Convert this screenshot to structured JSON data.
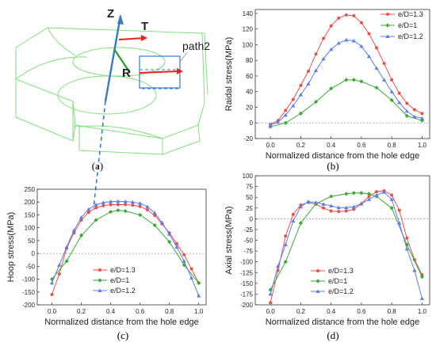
{
  "sketch": {
    "label_z": "Z",
    "label_t": "T",
    "label_r": "R",
    "label_path": "path2",
    "caption": "(a)",
    "colors": {
      "outline": "#7ee07e",
      "axis": "#3a78c8",
      "arrow": "#e8231e",
      "r_axis": "#2aa02a"
    }
  },
  "chart_data": [
    {
      "type": "line",
      "caption": "(b)",
      "xlabel": "Normalized distance from the hole edge",
      "ylabel": "Raidal stress(MPa)",
      "xlim": [
        -0.1,
        1.05
      ],
      "ylim": [
        -20,
        145
      ],
      "xticks": [
        "0.0",
        "0.2",
        "0.4",
        "0.6",
        "0.8",
        "1.0"
      ],
      "yticks": [
        "-20",
        "0",
        "20",
        "40",
        "60",
        "80",
        "100",
        "120",
        "140"
      ],
      "legend_position": "top-right",
      "series": [
        {
          "name": "e/D=1.3",
          "color": "#e8504a",
          "marker": "circle",
          "x": [
            0,
            0.05,
            0.1,
            0.15,
            0.2,
            0.25,
            0.3,
            0.35,
            0.4,
            0.45,
            0.5,
            0.55,
            0.6,
            0.65,
            0.7,
            0.75,
            0.8,
            0.85,
            0.9,
            0.95,
            1.0
          ],
          "y": [
            -2,
            3,
            16,
            30,
            48,
            66,
            88,
            108,
            124,
            134,
            138,
            137,
            128,
            114,
            96,
            76,
            55,
            38,
            25,
            17,
            12
          ]
        },
        {
          "name": "e/D=1",
          "color": "#3aaa35",
          "marker": "diamond",
          "x": [
            0,
            0.1,
            0.2,
            0.3,
            0.4,
            0.5,
            0.55,
            0.6,
            0.7,
            0.8,
            0.9,
            1.0
          ],
          "y": [
            -5,
            0,
            12,
            27,
            44,
            55,
            55,
            53,
            45,
            29,
            9,
            3
          ]
        },
        {
          "name": "e/D=1.2",
          "color": "#5b7ee8",
          "marker": "triangle",
          "x": [
            0,
            0.05,
            0.1,
            0.15,
            0.2,
            0.25,
            0.3,
            0.35,
            0.4,
            0.45,
            0.5,
            0.55,
            0.6,
            0.65,
            0.7,
            0.75,
            0.8,
            0.85,
            0.9,
            0.95,
            1.0
          ],
          "y": [
            -3,
            1,
            10,
            22,
            36,
            50,
            67,
            82,
            94,
            102,
            106,
            105,
            98,
            85,
            70,
            55,
            40,
            26,
            15,
            8,
            6
          ]
        }
      ]
    },
    {
      "type": "line",
      "caption": "(c)",
      "xlabel": "Normalized distance from the hole edge",
      "ylabel": "Hoop stress(MPa)",
      "xlim": [
        -0.1,
        1.05
      ],
      "ylim": [
        -200,
        250
      ],
      "xticks": [
        "0.0",
        "0.2",
        "0.4",
        "0.6",
        "0.8",
        "1.0"
      ],
      "yticks": [
        "-200",
        "-150",
        "-100",
        "-50",
        "0",
        "50",
        "100",
        "150",
        "200",
        "250"
      ],
      "legend_position": "bottom-center",
      "series": [
        {
          "name": "e/D=1.3",
          "color": "#e8504a",
          "marker": "circle",
          "x": [
            0,
            0.05,
            0.1,
            0.15,
            0.2,
            0.25,
            0.3,
            0.35,
            0.4,
            0.45,
            0.5,
            0.55,
            0.6,
            0.65,
            0.7,
            0.75,
            0.8,
            0.85,
            0.9,
            0.95,
            1.0
          ],
          "y": [
            -160,
            -80,
            20,
            80,
            130,
            160,
            178,
            186,
            190,
            190,
            190,
            188,
            183,
            170,
            148,
            115,
            80,
            38,
            -5,
            -60,
            -115
          ]
        },
        {
          "name": "e/D=1",
          "color": "#3aaa35",
          "marker": "diamond",
          "x": [
            0,
            0.1,
            0.2,
            0.3,
            0.4,
            0.45,
            0.5,
            0.6,
            0.7,
            0.8,
            0.9,
            1.0
          ],
          "y": [
            -100,
            -30,
            70,
            130,
            162,
            168,
            165,
            150,
            110,
            45,
            -45,
            -115
          ]
        },
        {
          "name": "e/D=1.2",
          "color": "#5b7ee8",
          "marker": "triangle",
          "x": [
            0,
            0.05,
            0.1,
            0.15,
            0.2,
            0.25,
            0.3,
            0.35,
            0.4,
            0.45,
            0.5,
            0.55,
            0.6,
            0.65,
            0.7,
            0.75,
            0.8,
            0.85,
            0.9,
            0.95,
            1.0
          ],
          "y": [
            -115,
            -45,
            25,
            90,
            140,
            172,
            190,
            198,
            202,
            203,
            202,
            200,
            195,
            182,
            158,
            120,
            75,
            25,
            -30,
            -95,
            -165
          ]
        }
      ]
    },
    {
      "type": "line",
      "caption": "(d)",
      "xlabel": "Normalized distance from the hole edge",
      "ylabel": "Axial stress(MPa)",
      "xlim": [
        -0.1,
        1.05
      ],
      "ylim": [
        -200,
        100
      ],
      "xticks": [
        "0.0",
        "0.2",
        "0.4",
        "0.6",
        "0.8",
        "1.0"
      ],
      "yticks": [
        "-200",
        "-175",
        "-150",
        "-125",
        "-100",
        "-75",
        "-50",
        "-25",
        "0",
        "25",
        "50",
        "75",
        "100"
      ],
      "legend_position": "bottom-center",
      "series": [
        {
          "name": "e/D=1.3",
          "color": "#e8504a",
          "marker": "circle",
          "x": [
            0,
            0.05,
            0.1,
            0.15,
            0.2,
            0.25,
            0.3,
            0.35,
            0.4,
            0.45,
            0.5,
            0.55,
            0.6,
            0.65,
            0.7,
            0.75,
            0.8,
            0.85,
            0.9,
            0.95,
            1.0
          ],
          "y": [
            -195,
            -120,
            -40,
            10,
            32,
            38,
            34,
            25,
            18,
            17,
            18,
            22,
            35,
            52,
            63,
            65,
            55,
            20,
            -45,
            -95,
            -130
          ]
        },
        {
          "name": "e/D=1",
          "color": "#3aaa35",
          "marker": "diamond",
          "x": [
            0,
            0.1,
            0.2,
            0.3,
            0.4,
            0.5,
            0.55,
            0.6,
            0.65,
            0.7,
            0.8,
            0.9,
            1.0
          ],
          "y": [
            -165,
            -100,
            -10,
            35,
            52,
            58,
            60,
            60,
            58,
            52,
            25,
            -60,
            -135
          ]
        },
        {
          "name": "e/D=1.2",
          "color": "#5b7ee8",
          "marker": "triangle",
          "x": [
            0,
            0.05,
            0.1,
            0.15,
            0.2,
            0.25,
            0.3,
            0.35,
            0.4,
            0.45,
            0.5,
            0.55,
            0.6,
            0.65,
            0.7,
            0.75,
            0.8,
            0.85,
            0.9,
            0.95,
            1.0
          ],
          "y": [
            -175,
            -110,
            -60,
            -5,
            28,
            40,
            38,
            34,
            30,
            26,
            26,
            28,
            35,
            45,
            55,
            62,
            45,
            -10,
            -70,
            -120,
            -185
          ]
        }
      ]
    }
  ]
}
